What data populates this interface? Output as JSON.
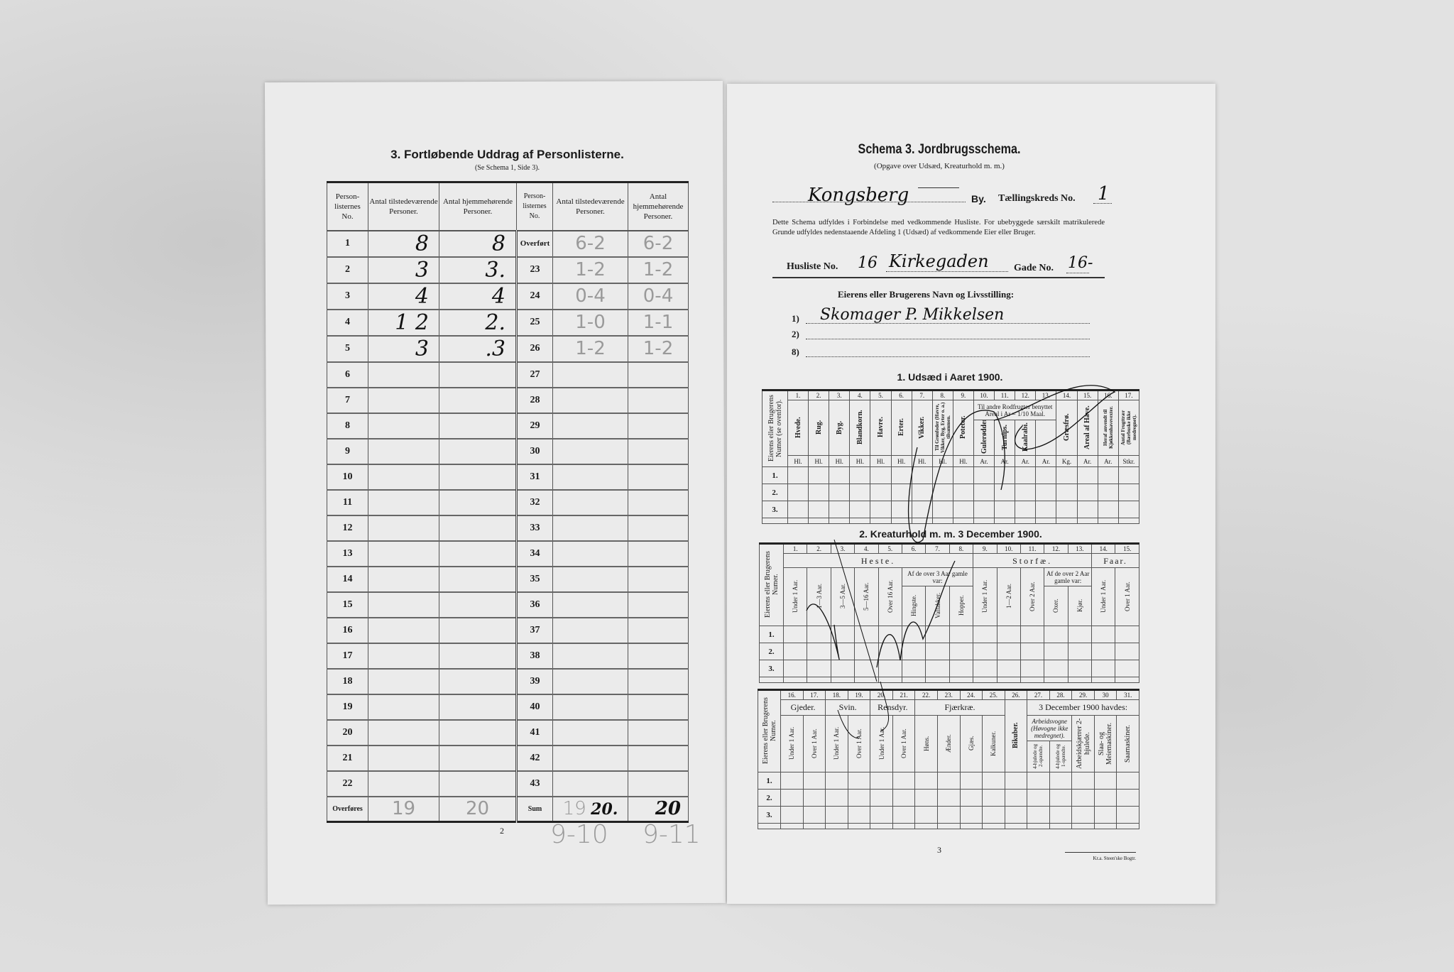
{
  "left_page": {
    "title": "3.  Fortløbende Uddrag af Personlisterne.",
    "subtitle": "(Se Schema 1, Side 3).",
    "headers": [
      "Person-listernes No.",
      "Antal tilstedeværende Personer.",
      "Antal hjemmehørende Personer.",
      "Person-listernes No.",
      "Antal tilstedeværende Personer.",
      "Antal hjemmehørende Personer."
    ],
    "rows_left": [
      {
        "no": "1",
        "tilst": "8",
        "hjemme": "8"
      },
      {
        "no": "2",
        "tilst": "3",
        "hjemme": "3."
      },
      {
        "no": "3",
        "tilst": "4",
        "hjemme": "4"
      },
      {
        "no": "4",
        "tilst": "1 2",
        "hjemme": "2."
      },
      {
        "no": "5",
        "tilst": "3",
        "hjemme": ".3"
      },
      {
        "no": "6",
        "tilst": "",
        "hjemme": ""
      },
      {
        "no": "7"
      },
      {
        "no": "8"
      },
      {
        "no": "9"
      },
      {
        "no": "10"
      },
      {
        "no": "11"
      },
      {
        "no": "12"
      },
      {
        "no": "13"
      },
      {
        "no": "14"
      },
      {
        "no": "15"
      },
      {
        "no": "16"
      },
      {
        "no": "17"
      },
      {
        "no": "18"
      },
      {
        "no": "19"
      },
      {
        "no": "20"
      },
      {
        "no": "21"
      },
      {
        "no": "22"
      }
    ],
    "rows_right": [
      {
        "no": "Overført",
        "tilst": "6-2",
        "hjemme": "6-2"
      },
      {
        "no": "23",
        "tilst": "1-2",
        "hjemme": "1-2"
      },
      {
        "no": "24",
        "tilst": "0-4",
        "hjemme": "0-4"
      },
      {
        "no": "25",
        "tilst": "1-0",
        "hjemme": "1-1"
      },
      {
        "no": "26",
        "tilst": "1-2",
        "hjemme": "1-2"
      },
      {
        "no": "27"
      },
      {
        "no": "28"
      },
      {
        "no": "29"
      },
      {
        "no": "30"
      },
      {
        "no": "31"
      },
      {
        "no": "32"
      },
      {
        "no": "33"
      },
      {
        "no": "34"
      },
      {
        "no": "35"
      },
      {
        "no": "36"
      },
      {
        "no": "37"
      },
      {
        "no": "38"
      },
      {
        "no": "39"
      },
      {
        "no": "40"
      },
      {
        "no": "41"
      },
      {
        "no": "42"
      },
      {
        "no": "43"
      }
    ],
    "footer": {
      "left_label": "Overføres",
      "left_tilst": "19",
      "left_hjemme": "20",
      "right_label": "Sum",
      "right_tilst_pencil": "19",
      "right_tilst_ink": "20.",
      "right_hjemme": "20"
    },
    "page_number": "2",
    "pencil_notes": [
      "9-10",
      "9-11"
    ]
  },
  "right_page": {
    "title": "Schema 3.  Jordbrugsschema.",
    "subtitle": "(Opgave over Udsæd, Kreaturhold m. m.)",
    "town_handwritten": "Kongsberg",
    "by_label": "By.",
    "kreds_label": "Tællingskreds No.",
    "kreds_value": "1",
    "instructions": "Dette Schema udfyldes i Forbindelse med vedkommende Husliste.  For ubebyggede særskilt matrikulerede Grunde udfyldes nedenstaaende Afdeling 1 (Udsæd) af vedkommende Eier eller Bruger.",
    "husliste_label": "Husliste No.",
    "husliste_value": "16",
    "street_handwritten": "Kirkegaden",
    "gade_label": "Gade No.",
    "gade_value": "16-",
    "owner_heading": "Eierens eller Brugerens Navn og Livsstilling:",
    "owner_lines": [
      {
        "label": "1)",
        "value": "Skomager P. Mikkelsen"
      },
      {
        "label": "2)",
        "value": ""
      },
      {
        "label": "8)",
        "value": ""
      }
    ],
    "row_labels": [
      "1.",
      "2.",
      "3."
    ],
    "owner_col": "Eierens eller Brugerens Numer (se ovenfor).",
    "owner_col2": "Eierens eller Brugerens Numer.",
    "section1": {
      "title": "1.  Udsæd i Aaret 1900.",
      "nums": [
        "1.",
        "2.",
        "3.",
        "4.",
        "5.",
        "6.",
        "7.",
        "8.",
        "9.",
        "10.",
        "11.",
        "12.",
        "13.",
        "14.",
        "15.",
        "16.",
        "17."
      ],
      "labels": [
        "Hvede.",
        "Rug.",
        "Byg.",
        "Blandkorn.",
        "Havre.",
        "Erter.",
        "Vikker.",
        "Til Grønfoder (Havre, Vikker, Byg, Erter o. a.) tilsammen.",
        "Poteter.",
        "Gulerødder.",
        "Turnips.",
        "Kaalrabi.",
        "",
        "Græsfrø.",
        "Areal af Have.",
        "Heraf anvendt til Kjøkkenhavevexter.",
        "Antal Frugttrær (Bærbuske ikke medregnet)."
      ],
      "group_label": "Til andre Rodfrugter benyttet Areal i Ar = 1/10 Maal.",
      "units": [
        "Hl.",
        "Hl.",
        "Hl.",
        "Hl.",
        "Hl.",
        "Hl.",
        "Hl.",
        "Hl.",
        "Hl.",
        "Ar.",
        "Ar.",
        "Ar.",
        "Ar.",
        "Kg.",
        "Ar.",
        "Ar.",
        "Stkr."
      ]
    },
    "section2": {
      "title": "2.  Kreaturhold m. m. 3 December 1900.",
      "nums": [
        "1.",
        "2.",
        "3.",
        "4.",
        "5.",
        "6.",
        "7.",
        "8.",
        "9.",
        "10.",
        "11.",
        "12.",
        "13.",
        "14.",
        "15."
      ],
      "groups": [
        "Heste.",
        "Storfæ.",
        "Faar."
      ],
      "subgroup_heste": "Af de over 3 Aar gamle var:",
      "subgroup_storfae": "Af de over 2 Aar gamle var:",
      "labels": [
        "Under 1 Aar.",
        "1—3 Aar.",
        "3—5 Aar.",
        "5—16 Aar.",
        "Over 16 Aar.",
        "Hingste.",
        "Vallakker.",
        "Hopper.",
        "Under 1 Aar.",
        "1—2 Aar.",
        "Over 2 Aar.",
        "Oxer.",
        "Kjør.",
        "Under 1 Aar.",
        "Over 1 Aar."
      ]
    },
    "section3": {
      "nums": [
        "16.",
        "17.",
        "18.",
        "19.",
        "20.",
        "21.",
        "22.",
        "23.",
        "24.",
        "25.",
        "26.",
        "27.",
        "28.",
        "29.",
        "30",
        "31."
      ],
      "groups": [
        "Gjeder.",
        "Svin.",
        "Rensdyr.",
        "Fjærkræ.",
        "3 December 1900 havdes:"
      ],
      "subgroup_vogne": "Arbeidsvogne (Høvogne ikke medregnet).",
      "labels": [
        "Under 1 Aar.",
        "Over 1 Aar.",
        "Under 1 Aar.",
        "Over 1 Aar.",
        "Under 1 Aar.",
        "Over 1 Aar.",
        "Høns.",
        "Ænder.",
        "Gjæs.",
        "Kalkuner.",
        "Bikuber.",
        "4-hjulede og 2-spændte.",
        "4-hjulede og 1-spændte.",
        "Arbeidskjærrer 2-hjulede.",
        "Slaa- og Meiemaskiner.",
        "Saamaskiner."
      ]
    },
    "page_number": "3",
    "printer": "Kr.a. Steen'ske Bogtr."
  }
}
